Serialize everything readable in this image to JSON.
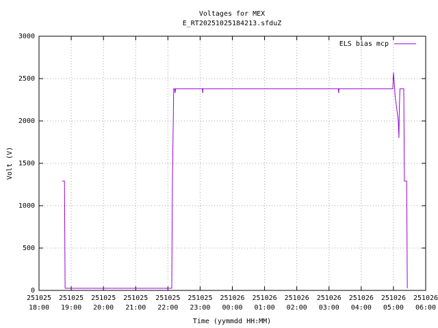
{
  "chart_data": {
    "type": "line",
    "title": "Voltages for MEX",
    "subtitle": "E_RT20251025184213.sfduZ",
    "x_label": "Time (yymmdd HH:MM)",
    "y_label": "Volt (V)",
    "xlim": [
      0,
      12
    ],
    "xticks": [
      {
        "value": 0,
        "label": "251025\n18:00"
      },
      {
        "value": 1,
        "label": "251025\n19:00"
      },
      {
        "value": 2,
        "label": "251025\n20:00"
      },
      {
        "value": 3,
        "label": "251025\n21:00"
      },
      {
        "value": 4,
        "label": "251025\n22:00"
      },
      {
        "value": 5,
        "label": "251025\n23:00"
      },
      {
        "value": 6,
        "label": "251026\n00:00"
      },
      {
        "value": 7,
        "label": "251026\n01:00"
      },
      {
        "value": 8,
        "label": "251026\n02:00"
      },
      {
        "value": 9,
        "label": "251026\n03:00"
      },
      {
        "value": 10,
        "label": "251026\n04:00"
      },
      {
        "value": 11,
        "label": "251026\n05:00"
      },
      {
        "value": 12,
        "label": "251026\n06:00"
      }
    ],
    "ylim": [
      0,
      3000
    ],
    "yticks": [
      0,
      500,
      1000,
      1500,
      2000,
      2500,
      3000
    ],
    "grid": true,
    "legend": "top-right",
    "series": [
      {
        "name": "ELS bias mcp",
        "color": "#9400d3",
        "x": [
          0.72,
          0.79,
          0.81,
          4.12,
          4.14,
          4.18,
          4.21,
          4.22,
          4.24,
          5.07,
          5.08,
          5.09,
          9.29,
          9.3,
          9.31,
          10.98,
          11.0,
          11.02,
          11.05,
          11.1,
          11.15,
          11.17,
          11.18,
          11.2,
          11.21,
          11.32,
          11.34,
          11.41,
          11.43
        ],
        "values": [
          1290,
          1290,
          25,
          25,
          1270,
          2380,
          2380,
          2330,
          2380,
          2380,
          2330,
          2380,
          2380,
          2330,
          2380,
          2380,
          2570,
          2480,
          2300,
          2150,
          2000,
          1800,
          2100,
          2380,
          2380,
          2380,
          1290,
          1290,
          25
        ]
      }
    ]
  }
}
